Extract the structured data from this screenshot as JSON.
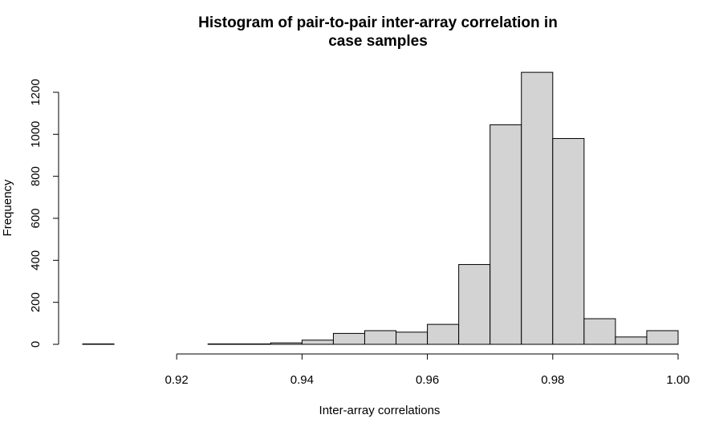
{
  "chart_data": {
    "type": "bar",
    "title_lines": [
      "Histogram of pair-to-pair inter-array correlation in",
      "case samples"
    ],
    "xlabel": "Inter-array correlations",
    "ylabel": "Frequency",
    "xlim": [
      0.905,
      1.0
    ],
    "ylim": [
      0,
      1300
    ],
    "x_ticks": [
      0.92,
      0.94,
      0.96,
      0.98,
      1.0
    ],
    "x_tick_labels": [
      "0.92",
      "0.94",
      "0.96",
      "0.98",
      "1.00"
    ],
    "y_ticks": [
      0,
      200,
      400,
      600,
      800,
      1000,
      1200
    ],
    "y_tick_labels": [
      "0",
      "200",
      "400",
      "600",
      "800",
      "1000",
      "1200"
    ],
    "bin_edges": [
      0.905,
      0.91,
      0.915,
      0.92,
      0.925,
      0.93,
      0.935,
      0.94,
      0.945,
      0.95,
      0.955,
      0.96,
      0.965,
      0.97,
      0.975,
      0.98,
      0.985,
      0.99,
      0.995,
      1.0
    ],
    "counts": [
      2,
      0,
      0,
      0,
      2,
      2,
      7,
      20,
      52,
      65,
      58,
      95,
      380,
      1045,
      1295,
      980,
      122,
      35,
      65
    ],
    "bar_fill": "#d3d3d3",
    "bar_stroke": "#000000"
  }
}
